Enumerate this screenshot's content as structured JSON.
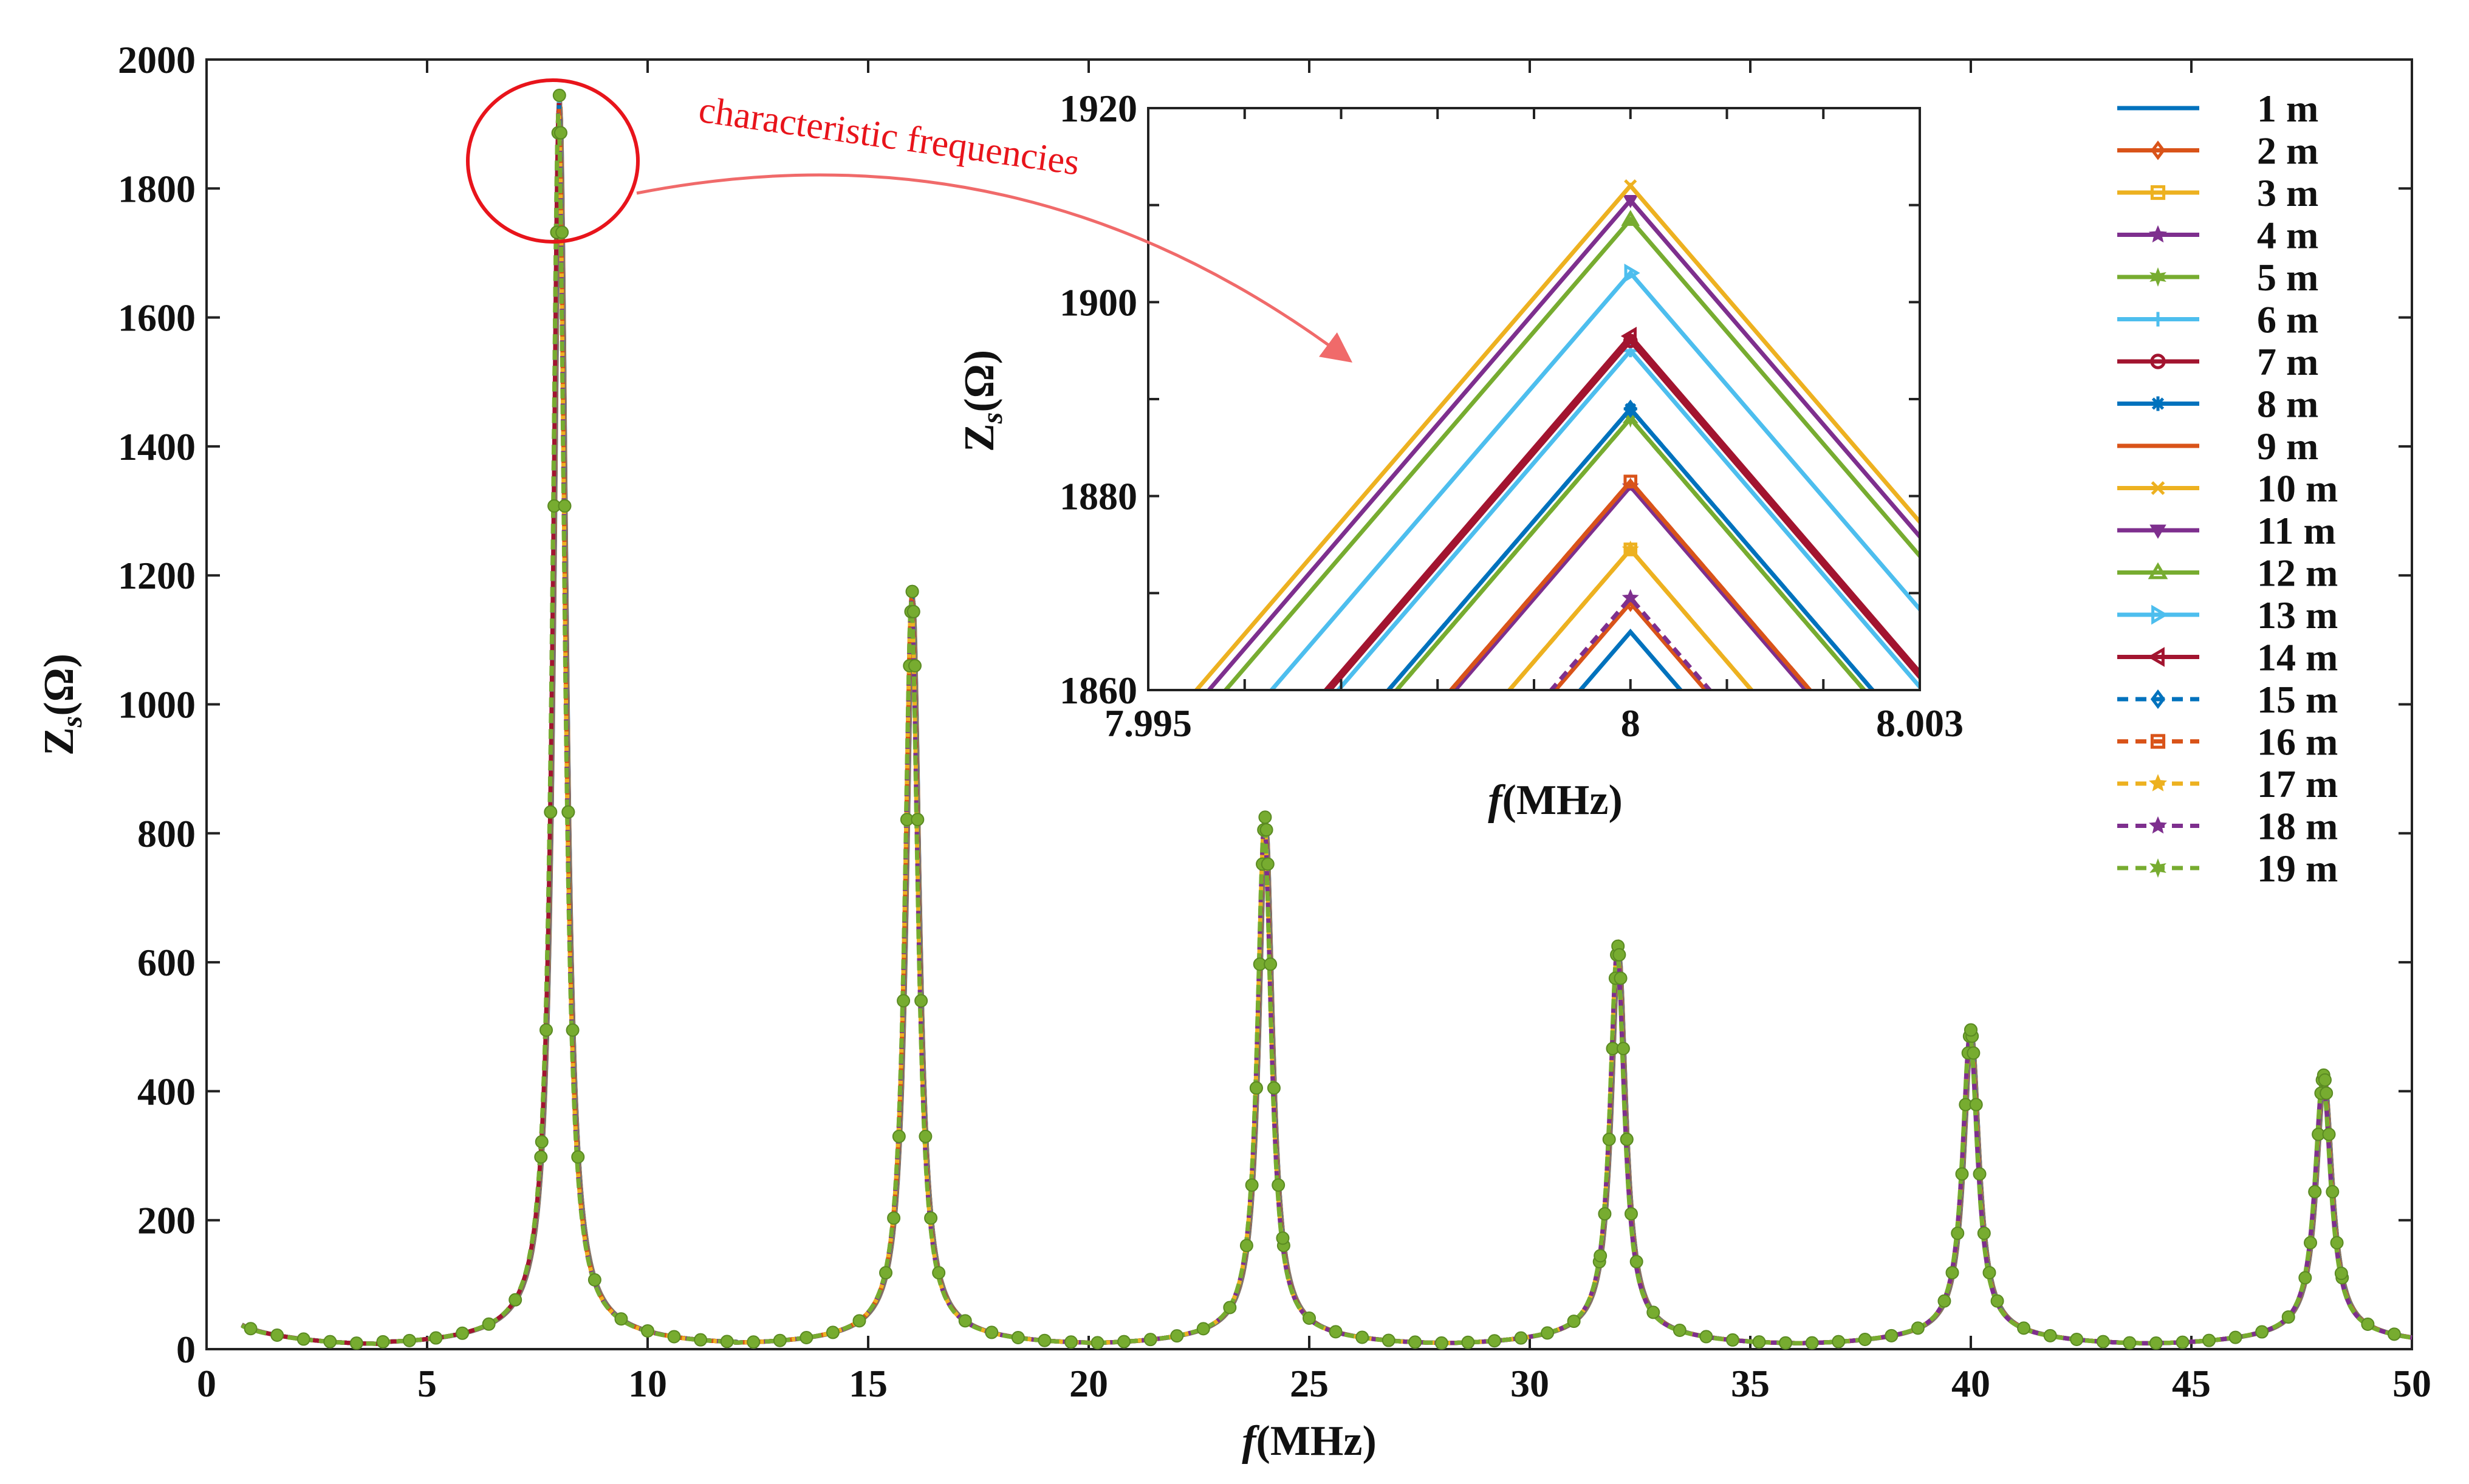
{
  "chart_data": [
    {
      "id": "main",
      "type": "line",
      "title": "",
      "xlabel": "f(MHz)",
      "ylabel": "Z_s(Ω)",
      "xlim": [
        0,
        50
      ],
      "ylim": [
        0,
        2000
      ],
      "xticks": [
        "0",
        "5",
        "10",
        "15",
        "20",
        "25",
        "30",
        "35",
        "40",
        "45",
        "50"
      ],
      "yticks": [
        "0",
        "200",
        "400",
        "600",
        "800",
        "1000",
        "1200",
        "1400",
        "1600",
        "1800",
        "2000"
      ],
      "peaks": [
        {
          "f": 8,
          "z": 1910
        },
        {
          "f": 16,
          "z": 1145
        },
        {
          "f": 24,
          "z": 795
        },
        {
          "f": 32,
          "z": 595
        },
        {
          "f": 40,
          "z": 465
        },
        {
          "f": 48,
          "z": 395
        }
      ],
      "troughs": [
        {
          "f": 4,
          "z": 15
        },
        {
          "f": 12,
          "z": 5
        },
        {
          "f": 20,
          "z": 5
        },
        {
          "f": 28,
          "z": 5
        },
        {
          "f": 36,
          "z": 5
        },
        {
          "f": 44,
          "z": 5
        }
      ],
      "start": {
        "f": 0.8,
        "z": 50
      },
      "end": {
        "f": 50,
        "z": 25
      }
    },
    {
      "id": "inset",
      "type": "line",
      "xlabel": "f(MHz)",
      "ylabel": "Z_s(Ω)",
      "xlim": [
        7.995,
        8.003
      ],
      "ylim": [
        1860,
        1920
      ],
      "xticks": [
        "7.995",
        "8",
        "8.003"
      ],
      "yticks": [
        "1860",
        "1880",
        "1900",
        "1920"
      ],
      "series_peaks": [
        {
          "name": "1 m",
          "peak": 1866
        },
        {
          "name": "2 m",
          "peak": 1869
        },
        {
          "name": "3 m",
          "peak": 1874.5
        },
        {
          "name": "4 m",
          "peak": 1881
        },
        {
          "name": "5 m",
          "peak": 1888
        },
        {
          "name": "6 m",
          "peak": 1895
        },
        {
          "name": "7 m",
          "peak": 1896
        },
        {
          "name": "8 m",
          "peak": 1889
        },
        {
          "name": "9 m",
          "peak": 1881.5
        },
        {
          "name": "10 m",
          "peak": 1912
        },
        {
          "name": "11 m",
          "peak": 1910.5
        },
        {
          "name": "12 m",
          "peak": 1908.5
        },
        {
          "name": "13 m",
          "peak": 1903
        },
        {
          "name": "14 m",
          "peak": 1896.5
        },
        {
          "name": "15 m",
          "peak": 1889
        },
        {
          "name": "16 m",
          "peak": 1881.5
        },
        {
          "name": "17 m",
          "peak": 1874.5
        },
        {
          "name": "18 m",
          "peak": 1869.5
        },
        {
          "name": "19 m",
          "peak": 1888
        }
      ]
    }
  ],
  "annotation": {
    "text": "characteristic frequencies"
  },
  "legend": {
    "placement": "top-right",
    "items": [
      {
        "label": "1 m",
        "color": "#0072BD",
        "marker": "none",
        "dash": false
      },
      {
        "label": "2 m",
        "color": "#D95319",
        "marker": "diamond",
        "dash": false
      },
      {
        "label": "3 m",
        "color": "#EDB120",
        "marker": "square",
        "dash": false
      },
      {
        "label": "4 m",
        "color": "#7E2F8E",
        "marker": "star",
        "dash": false
      },
      {
        "label": "5 m",
        "color": "#77AC30",
        "marker": "hexagram",
        "dash": false
      },
      {
        "label": "6 m",
        "color": "#4DBEEE",
        "marker": "plus",
        "dash": false
      },
      {
        "label": "7 m",
        "color": "#A2142F",
        "marker": "circle",
        "dash": false
      },
      {
        "label": "8 m",
        "color": "#0072BD",
        "marker": "asterisk",
        "dash": false
      },
      {
        "label": "9 m",
        "color": "#D95319",
        "marker": "none",
        "dash": false
      },
      {
        "label": "10 m",
        "color": "#EDB120",
        "marker": "x",
        "dash": false
      },
      {
        "label": "11 m",
        "color": "#7E2F8E",
        "marker": "tri-down",
        "dash": false
      },
      {
        "label": "12 m",
        "color": "#77AC30",
        "marker": "tri-up",
        "dash": false
      },
      {
        "label": "13 m",
        "color": "#4DBEEE",
        "marker": "tri-right",
        "dash": false
      },
      {
        "label": "14 m",
        "color": "#A2142F",
        "marker": "tri-left",
        "dash": false
      },
      {
        "label": "15 m",
        "color": "#0072BD",
        "marker": "diamond",
        "dash": true
      },
      {
        "label": "16 m",
        "color": "#D95319",
        "marker": "square",
        "dash": true
      },
      {
        "label": "17 m",
        "color": "#EDB120",
        "marker": "star",
        "dash": true
      },
      {
        "label": "18 m",
        "color": "#7E2F8E",
        "marker": "star",
        "dash": true
      },
      {
        "label": "19 m",
        "color": "#77AC30",
        "marker": "hexagram",
        "dash": true
      }
    ]
  }
}
